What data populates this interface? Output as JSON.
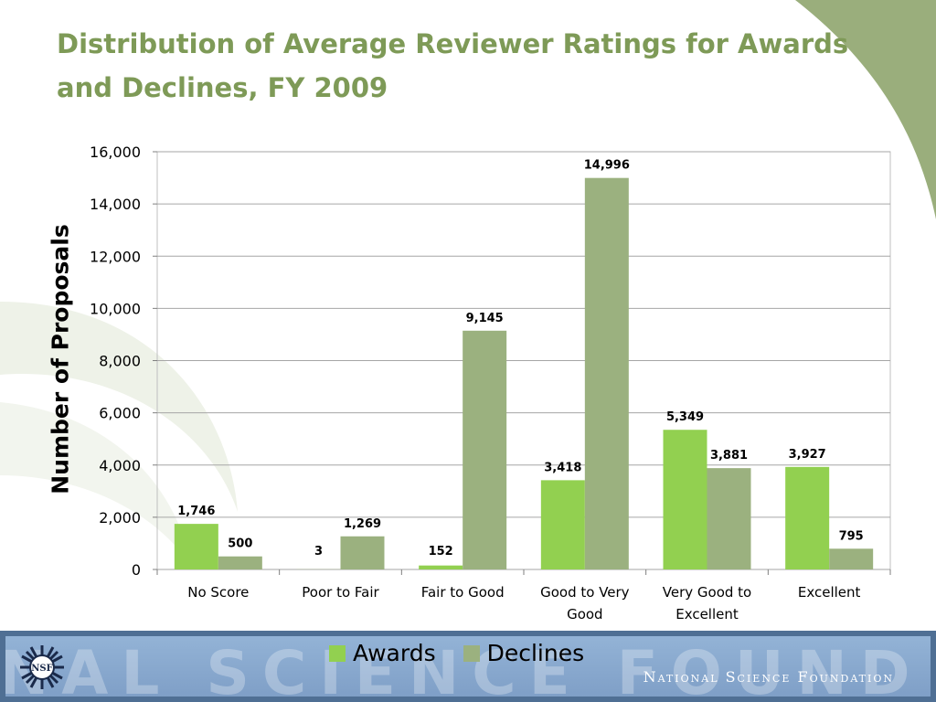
{
  "slide": {
    "title": "Distribution of Average Reviewer Ratings for Awards and Declines, FY 2009",
    "footer_org": "National Science Foundation",
    "footer_watermark": "NAL SCIENCE FOUND",
    "logo_text": "NSF"
  },
  "legend": {
    "items": [
      {
        "label": "Awards",
        "color": "#92d050"
      },
      {
        "label": "Declines",
        "color": "#9bb17f"
      }
    ]
  },
  "chart_data": {
    "type": "bar",
    "title": "Distribution of Average Reviewer Ratings for Awards and Declines, FY 2009",
    "xlabel": "",
    "ylabel": "Number of Proposals",
    "ylim": [
      0,
      16000
    ],
    "yticks": [
      0,
      2000,
      4000,
      6000,
      8000,
      10000,
      12000,
      14000,
      16000
    ],
    "ytick_labels": [
      "0",
      "2,000",
      "4,000",
      "6,000",
      "8,000",
      "10,000",
      "12,000",
      "14,000",
      "16,000"
    ],
    "grid": true,
    "legend_position": "bottom",
    "categories": [
      [
        "No Score"
      ],
      [
        "Poor to Fair"
      ],
      [
        "Fair to Good"
      ],
      [
        "Good to Very",
        "Good"
      ],
      [
        "Very Good to",
        "Excellent"
      ],
      [
        "Excellent"
      ]
    ],
    "series": [
      {
        "name": "Awards",
        "color": "#92d050",
        "values": [
          1746,
          3,
          152,
          3418,
          5349,
          3927
        ],
        "labels": [
          "1,746",
          "3",
          "152",
          "3,418",
          "5,349",
          "3,927"
        ]
      },
      {
        "name": "Declines",
        "color": "#9bb17f",
        "values": [
          500,
          1269,
          9145,
          14996,
          3881,
          795
        ],
        "labels": [
          "500",
          "1,269",
          "9,145",
          "14,996",
          "3,881",
          "795"
        ]
      }
    ]
  }
}
